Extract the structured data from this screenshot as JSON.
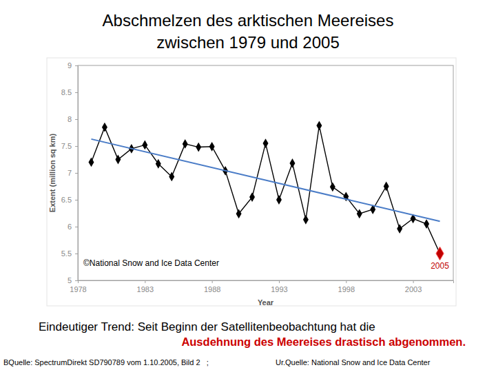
{
  "chart_data": {
    "type": "line",
    "title": [
      "Abschmelzen des arktischen Meereises",
      "zwischen 1979 und 2005"
    ],
    "x_label": "Year",
    "y_label": "Extent (million sq km)",
    "x": [
      1979,
      1980,
      1981,
      1982,
      1983,
      1984,
      1985,
      1986,
      1987,
      1988,
      1989,
      1990,
      1991,
      1992,
      1993,
      1994,
      1995,
      1996,
      1997,
      1998,
      1999,
      2000,
      2001,
      2002,
      2003,
      2004,
      2005
    ],
    "series": [
      {
        "color": "#000000",
        "marker": "diamond",
        "line_style": "solid",
        "colors": [
          "#000000",
          "#000000",
          "#000000",
          "#000000",
          "#000000",
          "#000000",
          "#000000",
          "#000000",
          "#000000",
          "#000000",
          "#000000",
          "#000000",
          "#000000",
          "#000000",
          "#000000",
          "#000000",
          "#000000",
          "#000000",
          "#000000",
          "#000000",
          "#000000",
          "#000000",
          "#000000",
          "#000000",
          "#000000",
          "#000000",
          "#c00000"
        ],
        "values": [
          7.2,
          7.85,
          7.25,
          7.45,
          7.52,
          7.17,
          6.93,
          7.54,
          7.48,
          7.49,
          7.04,
          6.24,
          6.55,
          7.55,
          6.5,
          7.18,
          6.13,
          7.88,
          6.74,
          6.56,
          6.24,
          6.32,
          6.75,
          5.96,
          6.15,
          6.05,
          5.5
        ]
      },
      {
        "color": "#4a7cc7",
        "marker": "none",
        "line_style": "solid",
        "x": [
          1979,
          2005
        ],
        "values": [
          7.63,
          6.1
        ]
      }
    ],
    "xlim": [
      1978,
      2006
    ],
    "xticks": [
      1978,
      1983,
      1988,
      1993,
      1998,
      2003
    ],
    "ylim": [
      5,
      9
    ],
    "yticks": [
      5,
      5.5,
      6,
      6.5,
      7,
      7.5,
      8,
      8.5,
      9
    ],
    "grid": false,
    "annotations": [
      {
        "text": "©National Snow and Ice Data Center"
      },
      {
        "text": "2005",
        "x": 2005,
        "y": 5.5
      }
    ]
  },
  "caption": [
    "Eindeutiger Trend: Seit Beginn der Satellitenbeobachtung hat die",
    "Ausdehnung des Meereises drastisch abgenommen."
  ],
  "sources": [
    "BQuelle: SpectrumDirekt SD790789 vom 1.10.2005, Bild 2   ;",
    "Ur.Quelle: National Snow and Ice Data Center"
  ]
}
